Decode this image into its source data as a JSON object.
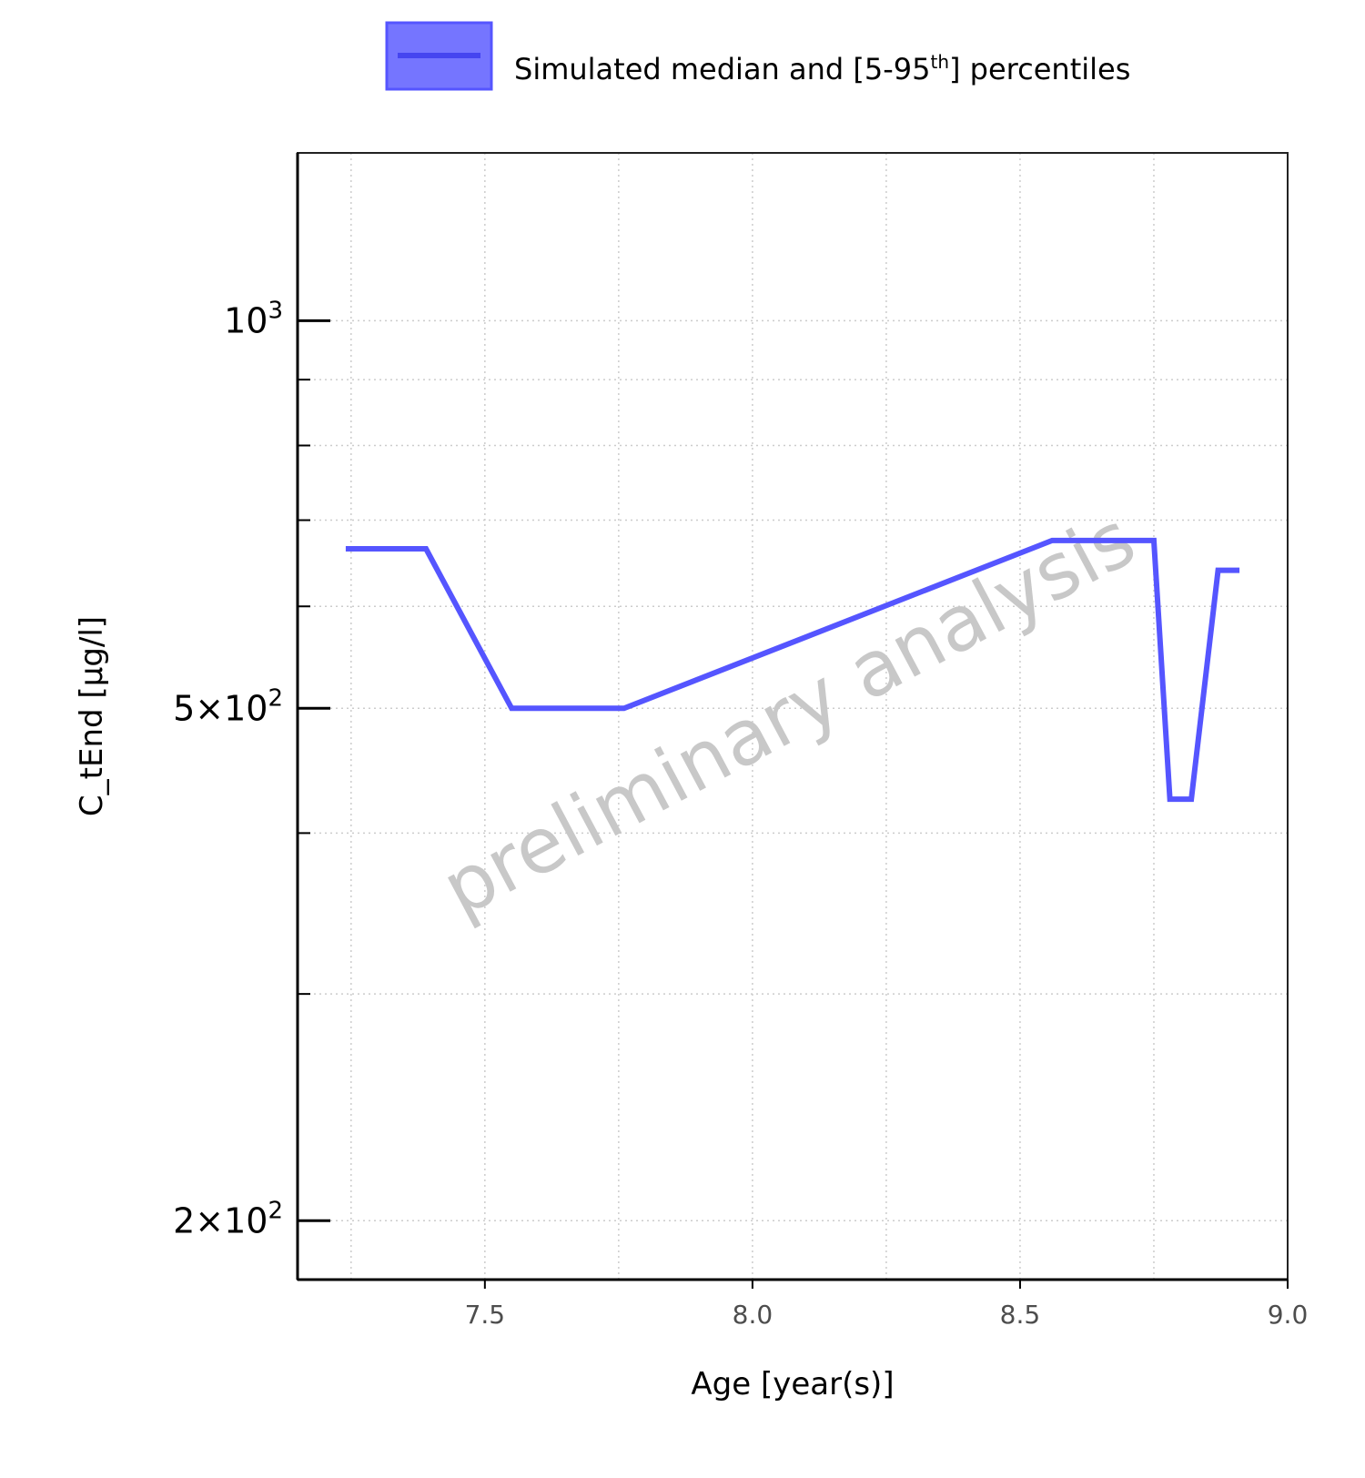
{
  "chart_data": {
    "type": "line",
    "xlabel": "Age [year(s)]",
    "ylabel": "C_tEnd [µg/l]",
    "y_scale": "log",
    "xlim": [
      7.15,
      9.0
    ],
    "ylim": [
      180,
      1350
    ],
    "x_ticks": [
      7.5,
      8.0,
      8.5,
      9.0
    ],
    "x_tick_labels": [
      "7.5",
      "8.0",
      "8.5",
      "9.0"
    ],
    "y_major_ticks": [
      {
        "value": 1000,
        "mantissa": "",
        "exponent": "3"
      },
      {
        "value": 500,
        "mantissa": "5",
        "exponent": "2"
      },
      {
        "value": 200,
        "mantissa": "2",
        "exponent": "2"
      }
    ],
    "y_minor_ticks": [
      300,
      400,
      600,
      700,
      800,
      900
    ],
    "x_minor_grid": [
      7.25,
      7.75,
      8.25,
      8.75
    ],
    "grid": true,
    "legend": {
      "position": "top",
      "label_main": "Simulated median and [5-95",
      "label_sup": "th",
      "label_end": "] percentiles"
    },
    "watermark": "preliminary analysis",
    "series": [
      {
        "color": "#5555ff",
        "x": [
          7.24,
          7.39,
          7.55,
          7.76,
          8.56,
          8.75,
          8.78,
          8.82,
          8.87,
          8.91
        ],
        "y": [
          665,
          665,
          500,
          500,
          675,
          675,
          425,
          425,
          640,
          640
        ]
      }
    ]
  }
}
